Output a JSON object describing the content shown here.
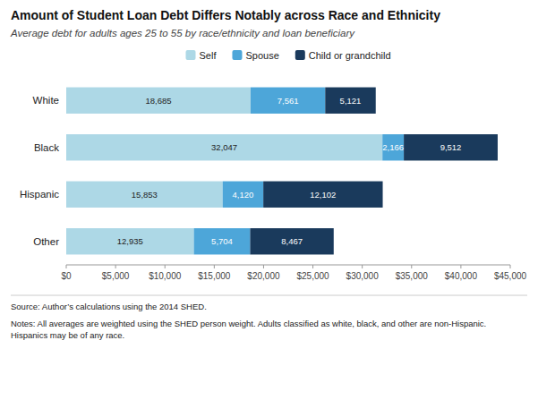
{
  "chart_data": {
    "type": "bar",
    "orientation": "horizontal",
    "stacked": true,
    "data_labels": true,
    "grid": false,
    "legend": "top",
    "title": "Amount of Student Loan Debt Differs Notably across Race and Ethnicity",
    "subtitle": "Average debt for adults ages 25 to 55 by race/ethnicity and loan beneficiary",
    "annotations": [
      "Source: Author’s calculations using the 2014 SHED.",
      "Notes: All averages are weighted using the SHED person weight. Adults classified as white, black, and other are non-Hispanic.\nHispanics may be of any race."
    ],
    "categories": [
      "White",
      "Black",
      "Hispanic",
      "Other"
    ],
    "series": [
      {
        "name": "Self",
        "color": "#add8e6",
        "values": [
          18685,
          32047,
          15853,
          12935
        ],
        "value_labels": [
          "18,685",
          "32,047",
          "15,853",
          "12,935"
        ]
      },
      {
        "name": "Spouse",
        "color": "#4da6d9",
        "values": [
          7561,
          2166,
          4120,
          5704
        ],
        "value_labels": [
          "7,561",
          "2,166",
          "4,120",
          "5,704"
        ]
      },
      {
        "name": "Child or grandchild",
        "color": "#1a3a5c",
        "values": [
          5121,
          9512,
          12102,
          8467
        ],
        "value_labels": [
          "5,121",
          "9,512",
          "12,102",
          "8,467"
        ]
      }
    ],
    "xlim": [
      0,
      45000
    ],
    "xticks": [
      {
        "value": 0,
        "label": "$0"
      },
      {
        "value": 5000,
        "label": "$5,000"
      },
      {
        "value": 10000,
        "label": "$10,000"
      },
      {
        "value": 15000,
        "label": "$15,000"
      },
      {
        "value": 20000,
        "label": "$20,000"
      },
      {
        "value": 25000,
        "label": "$25,000"
      },
      {
        "value": 30000,
        "label": "$30,000"
      },
      {
        "value": 35000,
        "label": "$35,000"
      },
      {
        "value": 40000,
        "label": "$40,000"
      },
      {
        "value": 45000,
        "label": "$45,000"
      }
    ]
  }
}
